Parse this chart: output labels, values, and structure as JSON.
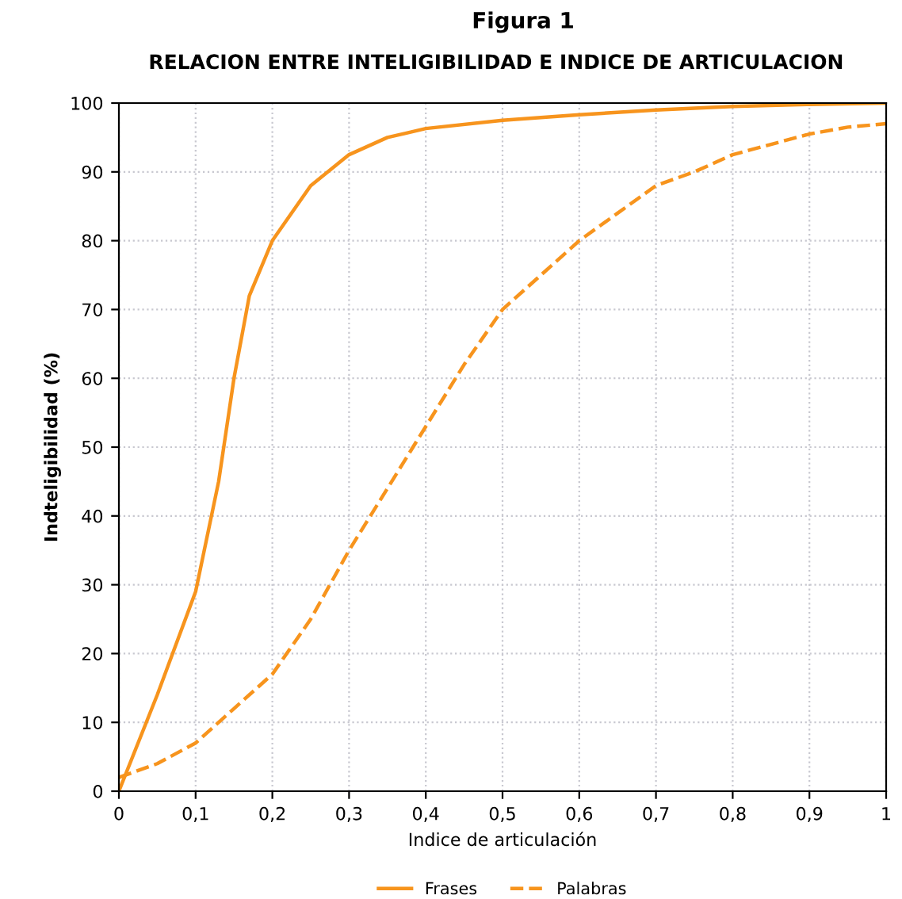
{
  "chart_data": {
    "type": "line",
    "title": "Figura 1",
    "subtitle": "RELACION ENTRE INTELIGIBILIDAD E INDICE DE ARTICULACION",
    "xlabel": "Indice de articulación",
    "ylabel": "Indteligibilidad (%)",
    "xlim": [
      0,
      1
    ],
    "ylim": [
      0,
      100
    ],
    "xticks": [
      0,
      {
        "value": 0.1,
        "label": "0,1"
      },
      {
        "value": 0.2,
        "label": "0,2"
      },
      {
        "value": 0.3,
        "label": "0,3"
      },
      {
        "value": 0.4,
        "label": "0,4"
      },
      {
        "value": 0.5,
        "label": "0,5"
      },
      {
        "value": 0.6,
        "label": "0,6"
      },
      {
        "value": 0.7,
        "label": "0,7"
      },
      {
        "value": 0.8,
        "label": "0,8"
      },
      {
        "value": 0.9,
        "label": "0,9"
      },
      1
    ],
    "yticks": [
      0,
      10,
      20,
      30,
      40,
      50,
      60,
      70,
      80,
      90,
      100
    ],
    "grid": true,
    "legend": "bottom",
    "series": [
      {
        "name": "Frases",
        "color": "#f7941d",
        "line_style": "solid",
        "x": [
          0,
          0.05,
          0.1,
          0.13,
          0.15,
          0.17,
          0.2,
          0.25,
          0.3,
          0.35,
          0.4,
          0.5,
          0.6,
          0.7,
          0.8,
          0.9,
          1
        ],
        "values": [
          0,
          14,
          29,
          45,
          60,
          72,
          80,
          88,
          92.5,
          95,
          96.3,
          97.5,
          98.3,
          99,
          99.5,
          99.8,
          100
        ]
      },
      {
        "name": "Palabras",
        "color": "#f7941d",
        "line_style": "dashed",
        "x": [
          0,
          0.05,
          0.1,
          0.15,
          0.2,
          0.25,
          0.3,
          0.35,
          0.4,
          0.45,
          0.5,
          0.55,
          0.6,
          0.65,
          0.7,
          0.75,
          0.8,
          0.85,
          0.9,
          0.95,
          1
        ],
        "values": [
          2,
          4,
          7,
          12,
          17,
          25,
          35,
          44,
          53,
          62,
          70,
          75,
          80,
          84,
          88,
          90,
          92.5,
          94,
          95.5,
          96.5,
          97
        ]
      }
    ]
  }
}
